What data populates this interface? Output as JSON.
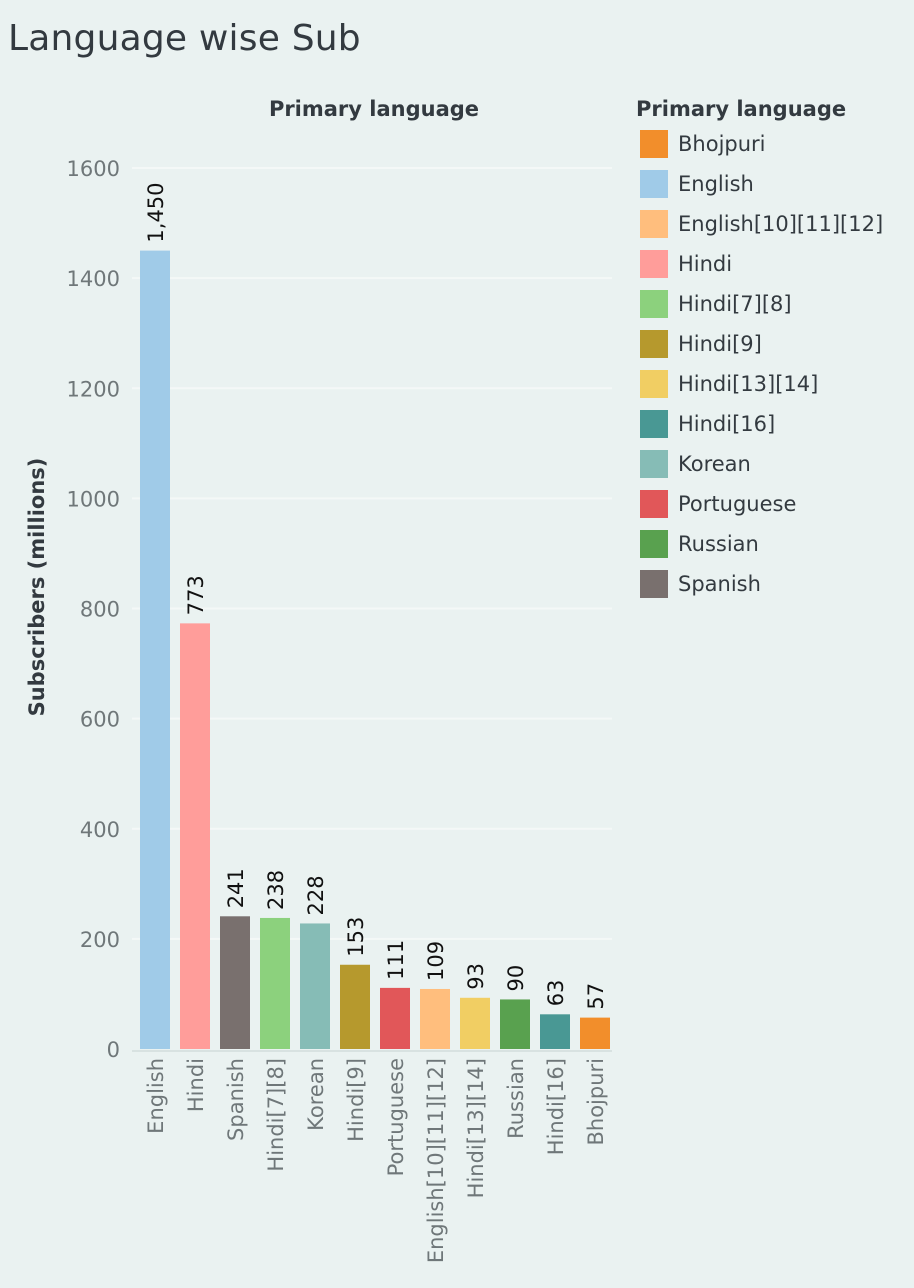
{
  "title": "Language wise Sub",
  "chart_data": {
    "type": "bar",
    "top_header": "Primary language",
    "ylabel": "Subscribers (millions)",
    "ylim": [
      0,
      1600
    ],
    "yticks": [
      0,
      200,
      400,
      600,
      800,
      1000,
      1200,
      1400,
      1600
    ],
    "grid": true,
    "legend_placement": "right",
    "categories": [
      "English",
      "Hindi",
      "Spanish",
      "Hindi[7][8]",
      "Korean",
      "Hindi[9]",
      "Portuguese",
      "English[10][11][12]",
      "Hindi[13][14]",
      "Russian",
      "Hindi[16]",
      "Bhojpuri"
    ],
    "values": [
      1450,
      773,
      241,
      238,
      228,
      153,
      111,
      109,
      93,
      90,
      63,
      57
    ],
    "value_labels": [
      "1,450",
      "773",
      "241",
      "238",
      "228",
      "153",
      "111",
      "109",
      "93",
      "90",
      "63",
      "57"
    ],
    "colors": [
      "#a0cbe8",
      "#ff9d9a",
      "#79706e",
      "#8cd17d",
      "#86bcb6",
      "#b6992d",
      "#e15759",
      "#ffbe7d",
      "#f1ce63",
      "#59a14f",
      "#499894",
      "#f28e2b"
    ]
  },
  "legend": {
    "title": "Primary language",
    "items": [
      {
        "label": "Bhojpuri",
        "color": "#f28e2b"
      },
      {
        "label": "English",
        "color": "#a0cbe8"
      },
      {
        "label": "English[10][11][12]",
        "color": "#ffbe7d"
      },
      {
        "label": "Hindi",
        "color": "#ff9d9a"
      },
      {
        "label": "Hindi[7][8]",
        "color": "#8cd17d"
      },
      {
        "label": "Hindi[9]",
        "color": "#b6992d"
      },
      {
        "label": "Hindi[13][14]",
        "color": "#f1ce63"
      },
      {
        "label": "Hindi[16]",
        "color": "#499894"
      },
      {
        "label": "Korean",
        "color": "#86bcb6"
      },
      {
        "label": "Portuguese",
        "color": "#e15759"
      },
      {
        "label": "Russian",
        "color": "#59a14f"
      },
      {
        "label": "Spanish",
        "color": "#79706e"
      }
    ]
  }
}
